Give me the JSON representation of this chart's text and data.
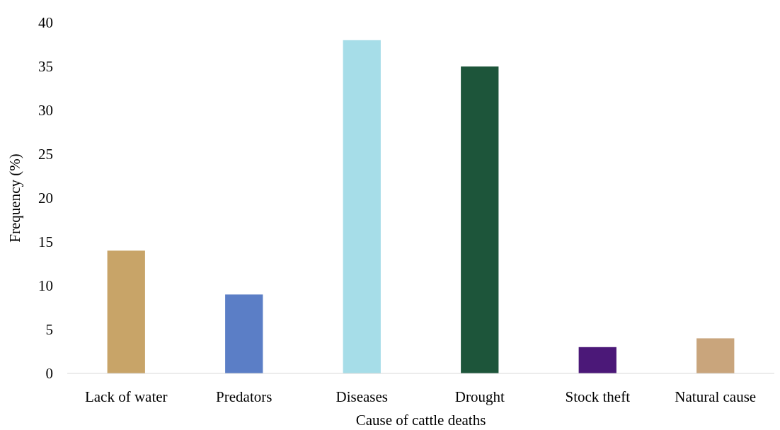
{
  "chart_data": {
    "type": "bar",
    "xlabel": "Cause of cattle deaths",
    "ylabel": "Frequency (%)",
    "categories": [
      "Lack of water",
      "Predators",
      "Diseases",
      "Drought",
      "Stock theft",
      "Natural cause"
    ],
    "values": [
      14,
      9,
      38,
      35,
      3,
      4
    ],
    "colors": [
      "#c8a468",
      "#5b7ec6",
      "#a6dde8",
      "#1d553a",
      "#4b1878",
      "#c9a57c"
    ],
    "ylim": [
      0,
      40
    ],
    "yticks": [
      0,
      5,
      10,
      15,
      20,
      25,
      30,
      35,
      40
    ]
  }
}
